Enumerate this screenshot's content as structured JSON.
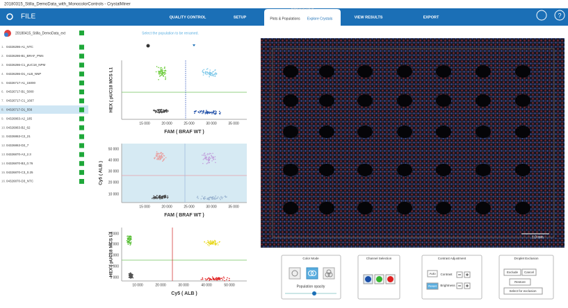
{
  "window_title": "20180315_Stilla_DemoData_with_MonocolorControls - CrystalMiner",
  "nav": {
    "file": "FILE",
    "tabs": [
      "QUALITY CONTROL",
      "SETUP",
      "VIEW RESULTS",
      "EXPORT"
    ],
    "analyze": {
      "group": "ANALYZE DATA",
      "items": [
        "Plots & Populations",
        "Explore Crystals"
      ]
    }
  },
  "sidebar": {
    "experiment": "20180415_Stilla_DemoData_ext",
    "wells": [
      {
        "no": "1.",
        "name": "04326286-A1_NTC"
      },
      {
        "no": "2.",
        "name": "04326286-B1_BRAF_PNN"
      },
      {
        "no": "3.",
        "name": "04326286-C1_pUC18_NPM"
      },
      {
        "no": "4.",
        "name": "04326286-D1_ALB_NNP"
      },
      {
        "no": "5.",
        "name": "04326717-A1_15000"
      },
      {
        "no": "6.",
        "name": "04326717-B1_5000"
      },
      {
        "no": "7.",
        "name": "04326717-C1_1667"
      },
      {
        "no": "8.",
        "name": "04326717-D1_556"
      },
      {
        "no": "9.",
        "name": "04326863-A2_185"
      },
      {
        "no": "10.",
        "name": "04326863-B2_62"
      },
      {
        "no": "11.",
        "name": "04326863-C2_21"
      },
      {
        "no": "12.",
        "name": "04326863-D2_7"
      },
      {
        "no": "13.",
        "name": "04326870-A3_2.3"
      },
      {
        "no": "14.",
        "name": "04326870-B3_0.76"
      },
      {
        "no": "15.",
        "name": "04326870-C3_0.25"
      },
      {
        "no": "16.",
        "name": "04326870-D3_NTC"
      }
    ]
  },
  "plots_panel": {
    "hint": "Select the population to be renamed.",
    "plots": [
      {
        "ylabel": "HEX ( pUC18 MCS L1",
        "xlabel": "FAM ( BRAF WT )",
        "xticks": [
          "15 000",
          "20 000",
          "25 000",
          "30 000",
          "35 000"
        ],
        "yticks": []
      },
      {
        "ylabel": "Cy5 ( ALB )",
        "xlabel": "FAM ( BRAF WT )",
        "xticks": [
          "15 000",
          "20 000",
          "25 000",
          "30 000",
          "35 000"
        ],
        "yticks": [
          "50 000",
          "40 000",
          "30 000",
          "20 000",
          "10 000"
        ]
      },
      {
        "ylabel": "HEX ( pUC18 MCS L1",
        "xlabel": "Cy5 ( ALB )",
        "xticks": [
          "10 000",
          "20 000",
          "30 000",
          "40 000",
          "50 000"
        ],
        "yticks": [
          "25 000",
          "20 000",
          "15 000",
          "10 000",
          "5 000"
        ]
      }
    ]
  },
  "image": {
    "scale": "1.0 mm"
  },
  "controls": {
    "color_mode": {
      "title": "Color Mode",
      "opacity": "Population opacity"
    },
    "channel": {
      "title": "Channel Selection"
    },
    "contrast": {
      "title": "Contrast Adjustment",
      "auto": "Auto",
      "contrast": "Contrast",
      "reset": "Reset",
      "brightness": "Brightness"
    },
    "exclusion": {
      "title": "Droplet Exclusion",
      "exclude": "Exclude",
      "cancel": "Cancel",
      "restore": "Restore",
      "select": "Select for exclusion"
    }
  }
}
